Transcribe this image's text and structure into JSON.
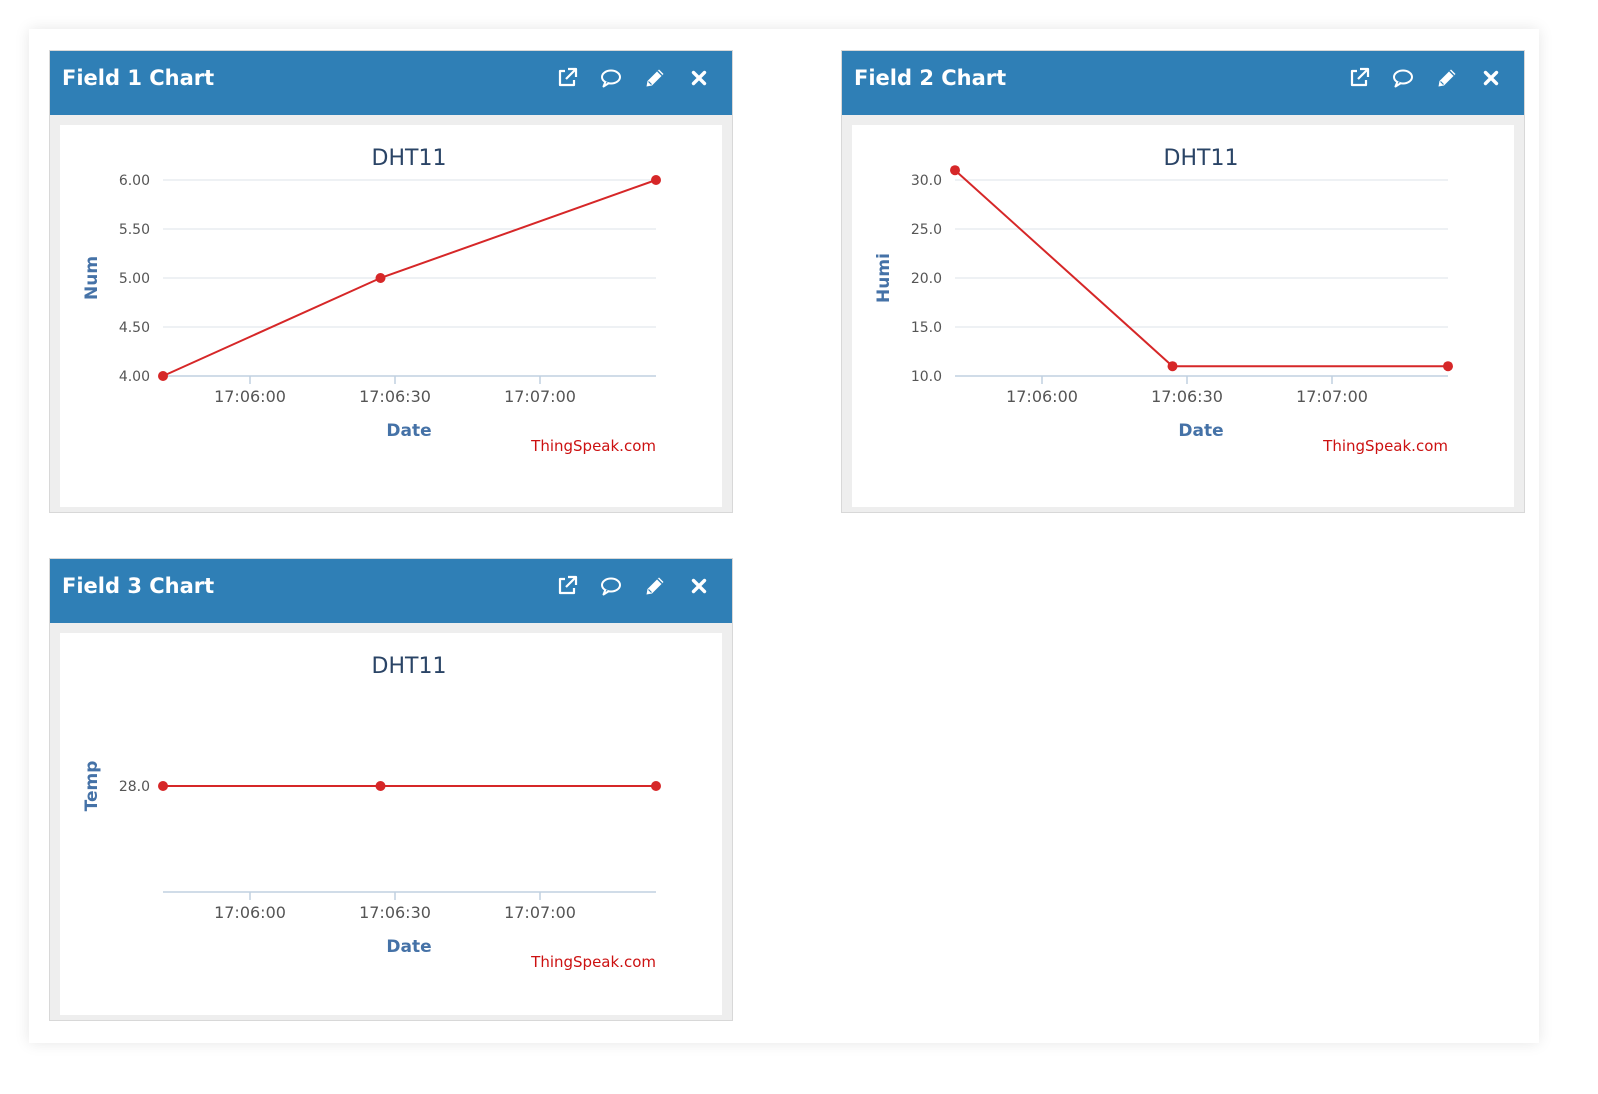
{
  "icons": {
    "external": "external-link-icon",
    "comment": "comment-icon",
    "edit": "pencil-icon",
    "close": "close-icon"
  },
  "colors": {
    "header": "#2f7fb6",
    "line": "#d62728",
    "axis_title": "#4572a7",
    "credit": "#cc1111"
  },
  "panels": [
    {
      "title": "Field 1 Chart",
      "chart_data": {
        "type": "line",
        "title": "DHT11",
        "xlabel": "Date",
        "ylabel": "Num",
        "credit": "ThingSpeak.com",
        "x_ticks": [
          "17:06:00",
          "17:06:30",
          "17:07:00"
        ],
        "y_ticks": [
          "4.00",
          "4.50",
          "5.00",
          "5.50",
          "6.00"
        ],
        "ylim": [
          4.0,
          6.0
        ],
        "xlim": [
          "17:05:42",
          "17:07:24"
        ],
        "grid": true,
        "series": [
          {
            "x": [
              "17:05:42",
              "17:06:27",
              "17:07:24"
            ],
            "values": [
              4.0,
              5.0,
              6.0
            ]
          }
        ]
      }
    },
    {
      "title": "Field 2 Chart",
      "chart_data": {
        "type": "line",
        "title": "DHT11",
        "xlabel": "Date",
        "ylabel": "Humi",
        "credit": "ThingSpeak.com",
        "x_ticks": [
          "17:06:00",
          "17:06:30",
          "17:07:00"
        ],
        "y_ticks": [
          "10.0",
          "15.0",
          "20.0",
          "25.0",
          "30.0"
        ],
        "ylim": [
          10.0,
          30.0
        ],
        "xlim": [
          "17:05:42",
          "17:07:24"
        ],
        "grid": true,
        "series": [
          {
            "x": [
              "17:05:42",
              "17:06:27",
              "17:07:24"
            ],
            "values": [
              31.0,
              11.0,
              11.0
            ]
          }
        ]
      }
    },
    {
      "title": "Field 3 Chart",
      "chart_data": {
        "type": "line",
        "title": "DHT11",
        "xlabel": "Date",
        "ylabel": "Temp",
        "credit": "ThingSpeak.com",
        "x_ticks": [
          "17:06:00",
          "17:06:30",
          "17:07:00"
        ],
        "y_ticks": [
          "28.0"
        ],
        "ylim": [
          27.0,
          29.0
        ],
        "xlim": [
          "17:05:42",
          "17:07:24"
        ],
        "grid": false,
        "series": [
          {
            "x": [
              "17:05:42",
              "17:06:27",
              "17:07:24"
            ],
            "values": [
              28.0,
              28.0,
              28.0
            ]
          }
        ]
      }
    }
  ]
}
